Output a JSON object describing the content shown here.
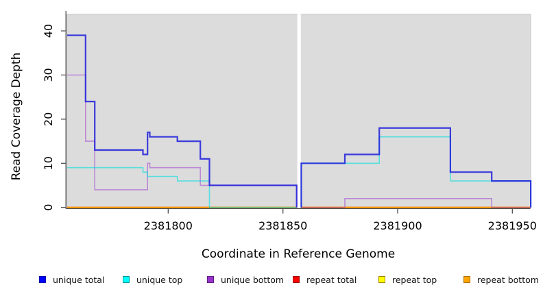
{
  "axes": {
    "x": {
      "label": "Coordinate in Reference Genome",
      "ticks": [
        "2381800",
        "2381850",
        "2381900",
        "2381950"
      ],
      "tick_values": [
        2381800,
        2381850,
        2381900,
        2381950
      ]
    },
    "y": {
      "label": "Read Coverage Depth",
      "ticks": [
        "0",
        "10",
        "20",
        "30",
        "40"
      ],
      "tick_values": [
        0,
        10,
        20,
        30,
        40
      ]
    }
  },
  "legend": [
    {
      "label": "unique total",
      "color": "#0000ff",
      "border": "#0000b0"
    },
    {
      "label": "unique top",
      "color": "#00ffff",
      "border": "#00989a"
    },
    {
      "label": "unique bottom",
      "color": "#9932cc",
      "border": "#5e1e85"
    },
    {
      "label": "repeat total",
      "color": "#ff0000",
      "border": "#9c0000"
    },
    {
      "label": "repeat top",
      "color": "#ffff00",
      "border": "#a58400"
    },
    {
      "label": "repeat bottom",
      "color": "#ffa500",
      "border": "#b06f00"
    }
  ],
  "colors": {
    "panel_background": "#dcdcdc",
    "gap_band": "#ffffff",
    "axis": "#4d4d4d"
  },
  "chart_data": {
    "type": "line",
    "step": true,
    "title": "",
    "xlabel": "Coordinate in Reference Genome",
    "ylabel": "Read Coverage Depth",
    "xlim": [
      2381756,
      2381958
    ],
    "ylim": [
      0,
      43.8
    ],
    "x_ticks": [
      2381800,
      2381850,
      2381900,
      2381950
    ],
    "y_ticks": [
      0,
      10,
      20,
      30,
      40
    ],
    "gap_region": [
      2381856,
      2381858
    ],
    "grid": false,
    "legend_position": "bottom",
    "draw_order": [
      3,
      4,
      5,
      2,
      1,
      0
    ],
    "series": [
      {
        "name": "unique total",
        "color": "#1f1fdc",
        "opacity": 0.86,
        "width": 2.2,
        "panels": [
          {
            "end": 2381856,
            "steps": [
              [
                2381756,
                39
              ],
              [
                2381764,
                24
              ],
              [
                2381768,
                13
              ],
              [
                2381789,
                12
              ],
              [
                2381791,
                17
              ],
              [
                2381792,
                16
              ],
              [
                2381804,
                15
              ],
              [
                2381814,
                11
              ],
              [
                2381818,
                5
              ]
            ]
          },
          {
            "end": 2381958,
            "steps": [
              [
                2381858,
                10
              ],
              [
                2381877,
                12
              ],
              [
                2381892,
                18
              ],
              [
                2381923,
                8
              ],
              [
                2381941,
                6
              ]
            ]
          }
        ]
      },
      {
        "name": "unique top",
        "color": "#00dede",
        "opacity": 0.6,
        "width": 1.6,
        "panels": [
          {
            "end": 2381856,
            "steps": [
              [
                2381756,
                9
              ],
              [
                2381789,
                8
              ],
              [
                2381791,
                7
              ],
              [
                2381804,
                6
              ],
              [
                2381818,
                0
              ]
            ]
          },
          {
            "end": 2381958,
            "steps": [
              [
                2381858,
                10
              ],
              [
                2381892,
                16
              ],
              [
                2381923,
                6
              ]
            ]
          }
        ]
      },
      {
        "name": "unique bottom",
        "color": "#9932cc",
        "opacity": 0.5,
        "width": 1.6,
        "panels": [
          {
            "end": 2381856,
            "steps": [
              [
                2381756,
                30
              ],
              [
                2381764,
                15
              ],
              [
                2381768,
                4
              ],
              [
                2381791,
                10
              ],
              [
                2381792,
                9
              ],
              [
                2381814,
                5
              ]
            ]
          },
          {
            "end": 2381958,
            "steps": [
              [
                2381858,
                0
              ],
              [
                2381877,
                2
              ],
              [
                2381941,
                0
              ]
            ]
          }
        ]
      },
      {
        "name": "repeat total",
        "color": "#e00000",
        "opacity": 0.9,
        "width": 1.8,
        "panels": [
          {
            "end": 2381856,
            "steps": [
              [
                2381756,
                0
              ]
            ]
          },
          {
            "end": 2381958,
            "steps": [
              [
                2381858,
                0
              ]
            ]
          }
        ]
      },
      {
        "name": "repeat top",
        "color": "#ffff00",
        "opacity": 0.9,
        "width": 1.6,
        "panels": [
          {
            "end": 2381856,
            "steps": [
              [
                2381756,
                0
              ]
            ]
          },
          {
            "end": 2381958,
            "steps": [
              [
                2381858,
                0
              ]
            ]
          }
        ]
      },
      {
        "name": "repeat bottom",
        "color": "#ff9d00",
        "opacity": 1,
        "width": 2,
        "panels": [
          {
            "end": 2381856,
            "steps": [
              [
                2381756,
                0
              ]
            ]
          },
          {
            "end": 2381958,
            "steps": [
              [
                2381858,
                0
              ]
            ]
          }
        ]
      }
    ]
  }
}
